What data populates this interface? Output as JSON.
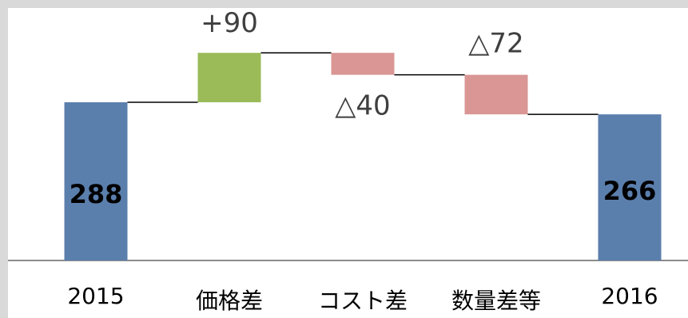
{
  "chart_data": {
    "type": "waterfall",
    "categories": [
      "2015",
      "価格差",
      "コスト差",
      "数量差等",
      "2016"
    ],
    "steps": [
      {
        "category": "2015",
        "kind": "total",
        "value": 288,
        "label": "288"
      },
      {
        "category": "価格差",
        "kind": "delta",
        "value": 90,
        "label": "+90"
      },
      {
        "category": "コスト差",
        "kind": "delta",
        "value": -40,
        "label": "△40"
      },
      {
        "category": "数量差等",
        "kind": "delta",
        "value": -72,
        "label": "△72"
      },
      {
        "category": "2016",
        "kind": "total",
        "value": 266,
        "label": "266"
      }
    ],
    "title": "",
    "xlabel": "",
    "ylabel": "",
    "grid": false,
    "colors": {
      "total": "#5b7fad",
      "increase": "#9bbb59",
      "decrease": "#d99694",
      "connector": "#000000",
      "axis": "#8c8c8c"
    }
  }
}
